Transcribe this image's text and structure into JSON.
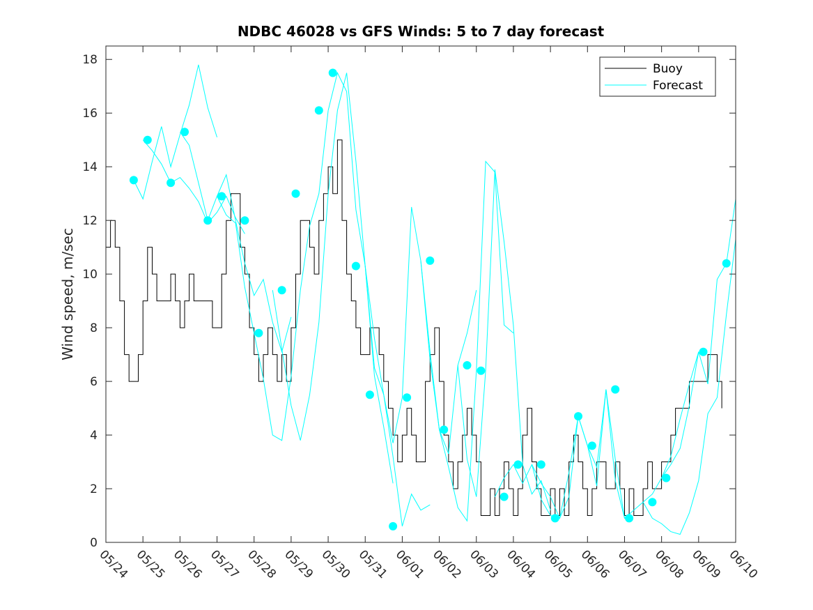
{
  "colors": {
    "buoy": "#000000",
    "forecast": "#00ffff",
    "axes": "#262626"
  },
  "chart_data": {
    "type": "line",
    "title": "NDBC 46028 vs GFS Winds: 5 to 7 day forecast",
    "xlabel": "",
    "ylabel": "Wind speed, m/sec",
    "x_tick_labels": [
      "05/24",
      "05/25",
      "05/26",
      "05/27",
      "05/28",
      "05/29",
      "05/30",
      "05/31",
      "06/01",
      "06/02",
      "06/03",
      "06/04",
      "06/05",
      "06/06",
      "06/07",
      "06/08",
      "06/09",
      "06/10"
    ],
    "y_ticks": [
      0,
      2,
      4,
      6,
      8,
      10,
      12,
      14,
      16,
      18
    ],
    "ylim": [
      0,
      18.5
    ],
    "legend": {
      "position": "top-right",
      "entries": [
        "Buoy",
        "Forecast"
      ]
    },
    "series": [
      {
        "name": "Buoy",
        "style": "line",
        "color": "#000000",
        "x": [
          "05/24 00:00",
          "05/24 03:00",
          "05/24 06:00",
          "05/24 09:00",
          "05/24 12:00",
          "05/24 15:00",
          "05/24 18:00",
          "05/24 21:00",
          "05/25 00:00",
          "05/25 03:00",
          "05/25 06:00",
          "05/25 09:00",
          "05/25 12:00",
          "05/25 15:00",
          "05/25 18:00",
          "05/25 21:00",
          "05/26 00:00",
          "05/26 03:00",
          "05/26 06:00",
          "05/26 09:00",
          "05/26 12:00",
          "05/26 15:00",
          "05/26 18:00",
          "05/26 21:00",
          "05/27 00:00",
          "05/27 03:00",
          "05/27 06:00",
          "05/27 09:00",
          "05/27 12:00",
          "05/27 15:00",
          "05/27 18:00",
          "05/27 21:00",
          "05/28 00:00",
          "05/28 03:00",
          "05/28 06:00",
          "05/28 09:00",
          "05/28 12:00",
          "05/28 15:00",
          "05/28 18:00",
          "05/28 21:00",
          "05/29 00:00",
          "05/29 03:00",
          "05/29 06:00",
          "05/29 09:00",
          "05/29 12:00",
          "05/29 15:00",
          "05/29 18:00",
          "05/29 21:00",
          "05/30 00:00",
          "05/30 03:00",
          "05/30 06:00",
          "05/30 09:00",
          "05/30 12:00",
          "05/30 15:00",
          "05/30 18:00",
          "05/30 21:00",
          "05/31 00:00",
          "05/31 03:00",
          "05/31 06:00",
          "05/31 09:00",
          "05/31 12:00",
          "05/31 15:00",
          "05/31 18:00",
          "05/31 21:00",
          "06/01 00:00",
          "06/01 03:00",
          "06/01 06:00",
          "06/01 09:00",
          "06/01 12:00",
          "06/01 15:00",
          "06/01 18:00",
          "06/01 21:00",
          "06/02 00:00",
          "06/02 03:00",
          "06/02 06:00",
          "06/02 09:00",
          "06/02 12:00",
          "06/02 15:00",
          "06/02 18:00",
          "06/02 21:00",
          "06/03 00:00",
          "06/03 03:00",
          "06/03 06:00",
          "06/03 09:00",
          "06/03 12:00",
          "06/03 15:00",
          "06/03 18:00",
          "06/03 21:00",
          "06/04 00:00",
          "06/04 03:00",
          "06/04 06:00",
          "06/04 09:00",
          "06/04 12:00",
          "06/04 15:00",
          "06/04 18:00",
          "06/04 21:00",
          "06/05 00:00",
          "06/05 03:00",
          "06/05 06:00",
          "06/05 09:00",
          "06/05 12:00",
          "06/05 15:00",
          "06/05 18:00",
          "06/05 21:00",
          "06/06 00:00",
          "06/06 03:00",
          "06/06 06:00",
          "06/06 09:00",
          "06/06 12:00",
          "06/06 15:00",
          "06/06 18:00",
          "06/06 21:00",
          "06/07 00:00",
          "06/07 03:00",
          "06/07 06:00",
          "06/07 09:00",
          "06/07 12:00",
          "06/07 15:00",
          "06/07 18:00",
          "06/07 21:00",
          "06/08 00:00",
          "06/08 03:00",
          "06/08 06:00",
          "06/08 09:00",
          "06/08 12:00",
          "06/08 15:00",
          "06/08 18:00",
          "06/08 21:00",
          "06/09 00:00",
          "06/09 03:00",
          "06/09 06:00",
          "06/09 09:00",
          "06/09 12:00",
          "06/09 15:00"
        ],
        "values": [
          11,
          12,
          11,
          9,
          7,
          6,
          6,
          7,
          9,
          11,
          10,
          9,
          9,
          9,
          10,
          9,
          8,
          9,
          10,
          9,
          9,
          9,
          9,
          8,
          8,
          10,
          12,
          13,
          13,
          11,
          10,
          8,
          7,
          6,
          7,
          8,
          7,
          6,
          7,
          6,
          8,
          10,
          12,
          12,
          11,
          10,
          12,
          13,
          14,
          13,
          15,
          12,
          10,
          9,
          8,
          7,
          7,
          8,
          8,
          7,
          6,
          5,
          4,
          3,
          4,
          5,
          4,
          3,
          3,
          6,
          7,
          8,
          6,
          4,
          3,
          2,
          3,
          4,
          5,
          4,
          3,
          1,
          1,
          2,
          1,
          2,
          3,
          2,
          1,
          2,
          4,
          5,
          3,
          2,
          1,
          1,
          2,
          1,
          2,
          1,
          3,
          4,
          3,
          2,
          1,
          2,
          3,
          3,
          2,
          2,
          3,
          2,
          1,
          2,
          1,
          1,
          2,
          3,
          2,
          2,
          3,
          3,
          4,
          5,
          5,
          5,
          6,
          6,
          6,
          6,
          7,
          7,
          6,
          5
        ]
      },
      {
        "name": "Forecast",
        "style": "line",
        "color": "#00ffff",
        "x": [
          "05/24 18:00",
          "05/25 00:00",
          "05/25 06:00",
          "05/25 12:00",
          "05/25 18:00",
          "05/26 00:00",
          "05/26 06:00",
          "05/26 12:00",
          "05/26 18:00",
          "05/27 00:00"
        ],
        "values": [
          13.5,
          12.8,
          14.2,
          15.5,
          14,
          15.2,
          16.3,
          17.8,
          16.2,
          15.1
        ]
      },
      {
        "name": "Forecast",
        "style": "line",
        "color": "#00ffff",
        "x": [
          "05/25 00:00",
          "05/25 06:00",
          "05/25 12:00",
          "05/25 18:00",
          "05/26 00:00",
          "05/26 06:00",
          "05/26 12:00",
          "05/26 18:00",
          "05/27 00:00",
          "05/27 06:00",
          "05/27 12:00",
          "05/27 18:00"
        ],
        "values": [
          15,
          14.6,
          14.1,
          13.4,
          13.6,
          13.2,
          12.7,
          11.9,
          12.3,
          12.9,
          12.1,
          11.5
        ]
      },
      {
        "name": "Forecast",
        "style": "line",
        "color": "#00ffff",
        "x": [
          "05/26 00:00",
          "05/26 06:00",
          "05/26 12:00",
          "05/26 18:00",
          "05/27 00:00",
          "05/27 06:00",
          "05/27 12:00",
          "05/27 18:00",
          "05/28 00:00",
          "05/28 06:00",
          "05/28 12:00",
          "05/28 18:00",
          "05/29 00:00"
        ],
        "values": [
          15.3,
          14.8,
          13.4,
          12,
          12.9,
          13.7,
          12,
          10.4,
          9.2,
          9.8,
          8.2,
          7.1,
          8.4
        ]
      },
      {
        "name": "Forecast",
        "style": "line",
        "color": "#00ffff",
        "x": [
          "05/27 00:00",
          "05/27 06:00",
          "05/27 12:00",
          "05/27 18:00",
          "05/28 00:00",
          "05/28 06:00",
          "05/28 12:00",
          "05/28 18:00",
          "05/29 00:00",
          "05/29 06:00",
          "05/29 12:00",
          "05/29 18:00",
          "05/30 00:00"
        ],
        "values": [
          12.9,
          12.2,
          11.9,
          9.5,
          7.8,
          6.1,
          4,
          3.8,
          6.2,
          9.4,
          11.8,
          13,
          16.1
        ]
      },
      {
        "name": "Forecast",
        "style": "line",
        "color": "#00ffff",
        "x": [
          "05/28 12:00",
          "05/28 18:00",
          "05/29 00:00",
          "05/29 06:00",
          "05/29 12:00",
          "05/29 18:00",
          "05/30 00:00",
          "05/30 06:00",
          "05/30 12:00",
          "05/30 18:00",
          "05/31 00:00",
          "05/31 06:00",
          "05/31 12:00",
          "05/31 18:00"
        ],
        "values": [
          9.4,
          7.2,
          5.1,
          3.8,
          5.5,
          8.2,
          13,
          16.1,
          17.5,
          14.2,
          10.3,
          6.2,
          4.3,
          2.2
        ]
      },
      {
        "name": "Forecast",
        "style": "line",
        "color": "#00ffff",
        "x": [
          "05/30 00:00",
          "05/30 06:00",
          "05/30 12:00",
          "05/30 18:00",
          "05/31 00:00",
          "05/31 06:00",
          "05/31 12:00",
          "05/31 18:00",
          "06/01 00:00",
          "06/01 06:00",
          "06/01 12:00",
          "06/01 18:00"
        ],
        "values": [
          16.1,
          17.5,
          16.8,
          12.4,
          10.3,
          7.6,
          5.5,
          3.2,
          0.6,
          1.8,
          1.2,
          1.4
        ]
      },
      {
        "name": "Forecast",
        "style": "line",
        "color": "#00ffff",
        "x": [
          "05/31 00:00",
          "05/31 06:00",
          "05/31 12:00",
          "05/31 18:00",
          "06/01 00:00",
          "06/01 06:00",
          "06/01 12:00",
          "06/01 18:00",
          "06/02 00:00",
          "06/02 06:00",
          "06/02 12:00",
          "06/02 18:00",
          "06/03 00:00"
        ],
        "values": [
          10.3,
          6.5,
          5.5,
          3.7,
          5.4,
          12.5,
          10.5,
          6.8,
          4.2,
          3.3,
          6.6,
          7.8,
          9.4
        ]
      },
      {
        "name": "Forecast",
        "style": "line",
        "color": "#00ffff",
        "x": [
          "06/01 12:00",
          "06/01 18:00",
          "06/02 00:00",
          "06/02 06:00",
          "06/02 12:00",
          "06/02 18:00",
          "06/03 00:00",
          "06/03 06:00",
          "06/03 12:00",
          "06/03 18:00",
          "06/04 00:00"
        ],
        "values": [
          10.5,
          7.1,
          4.2,
          2.8,
          1.3,
          0.8,
          6.4,
          14.2,
          13.8,
          8.1,
          7.8
        ]
      },
      {
        "name": "Forecast",
        "style": "line",
        "color": "#00ffff",
        "x": [
          "06/02 12:00",
          "06/02 18:00",
          "06/03 00:00",
          "06/03 06:00",
          "06/03 12:00",
          "06/03 18:00",
          "06/04 00:00",
          "06/04 06:00",
          "06/04 12:00",
          "06/04 18:00",
          "06/05 00:00"
        ],
        "values": [
          6.6,
          3.1,
          1.7,
          6.4,
          13.9,
          11.2,
          8.1,
          2.9,
          1.8,
          2.3,
          1.2
        ]
      },
      {
        "name": "Forecast",
        "style": "line",
        "color": "#00ffff",
        "x": [
          "06/03 12:00",
          "06/03 18:00",
          "06/04 00:00",
          "06/04 06:00",
          "06/04 12:00",
          "06/04 18:00",
          "06/05 00:00",
          "06/05 06:00",
          "06/05 12:00",
          "06/05 18:00",
          "06/06 00:00"
        ],
        "values": [
          1.7,
          2.4,
          2.9,
          2.2,
          2.9,
          1.6,
          1,
          0.9,
          1.7,
          4.7,
          3.6
        ]
      },
      {
        "name": "Forecast",
        "style": "line",
        "color": "#00ffff",
        "x": [
          "06/04 12:00",
          "06/04 18:00",
          "06/05 00:00",
          "06/05 06:00",
          "06/05 12:00",
          "06/05 18:00",
          "06/06 00:00",
          "06/06 06:00",
          "06/06 12:00",
          "06/06 18:00",
          "06/07 00:00"
        ],
        "values": [
          2.9,
          2.2,
          1.7,
          0.9,
          2.6,
          4.7,
          3.6,
          2.1,
          5.7,
          2.3,
          0.9
        ]
      },
      {
        "name": "Forecast",
        "style": "line",
        "color": "#00ffff",
        "x": [
          "06/06 00:00",
          "06/06 06:00",
          "06/06 12:00",
          "06/06 18:00",
          "06/07 00:00",
          "06/07 06:00",
          "06/07 12:00",
          "06/07 18:00",
          "06/08 00:00",
          "06/08 06:00",
          "06/08 12:00",
          "06/08 18:00",
          "06/09 00:00"
        ],
        "values": [
          3.6,
          2.8,
          5.7,
          3.1,
          0.9,
          1.2,
          1.5,
          1.8,
          2.4,
          3.2,
          4.6,
          5.9,
          7.1
        ]
      },
      {
        "name": "Forecast",
        "style": "line",
        "color": "#00ffff",
        "x": [
          "06/07 12:00",
          "06/07 18:00",
          "06/08 00:00",
          "06/08 06:00",
          "06/08 12:00",
          "06/08 18:00",
          "06/09 00:00",
          "06/09 06:00",
          "06/09 12:00",
          "06/09 18:00",
          "06/10 00:00"
        ],
        "values": [
          1.5,
          0.9,
          0.7,
          0.4,
          0.3,
          1.1,
          2.3,
          4.8,
          5.4,
          8.5,
          11.3
        ]
      },
      {
        "name": "Forecast",
        "style": "line",
        "color": "#00ffff",
        "x": [
          "06/08 00:00",
          "06/08 06:00",
          "06/08 12:00",
          "06/08 18:00",
          "06/09 00:00",
          "06/09 06:00",
          "06/09 12:00",
          "06/09 18:00",
          "06/10 00:00"
        ],
        "values": [
          2.4,
          2.9,
          3.5,
          5.1,
          7.1,
          5.9,
          9.8,
          10.4,
          12.8
        ]
      },
      {
        "name": "Forecast",
        "style": "points",
        "color": "#00ffff",
        "x": [
          "05/24 18:00",
          "05/25 03:00",
          "05/25 18:00",
          "05/26 03:00",
          "05/26 18:00",
          "05/27 03:00",
          "05/27 18:00",
          "05/28 03:00",
          "05/28 18:00",
          "05/29 03:00",
          "05/29 18:00",
          "05/30 03:00",
          "05/30 18:00",
          "05/31 03:00",
          "05/31 18:00",
          "06/01 03:00",
          "06/01 18:00",
          "06/02 03:00",
          "06/02 18:00",
          "06/03 03:00",
          "06/03 18:00",
          "06/04 03:00",
          "06/04 18:00",
          "06/05 03:00",
          "06/05 18:00",
          "06/06 03:00",
          "06/06 18:00",
          "06/07 03:00",
          "06/07 18:00",
          "06/08 03:00",
          "06/09 03:00",
          "06/09 18:00"
        ],
        "values": [
          13.5,
          15,
          13.4,
          15.3,
          12,
          12.9,
          12,
          7.8,
          9.4,
          13,
          16.1,
          17.5,
          10.3,
          5.5,
          0.6,
          5.4,
          10.5,
          4.2,
          6.6,
          6.4,
          1.7,
          2.9,
          2.9,
          0.9,
          4.7,
          3.6,
          5.7,
          0.9,
          1.5,
          2.4,
          7.1,
          10.4
        ]
      }
    ]
  }
}
